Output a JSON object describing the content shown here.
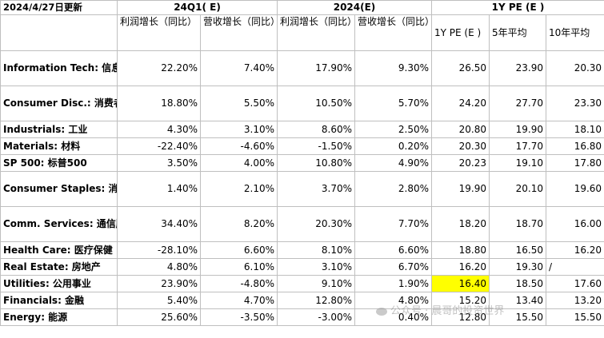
{
  "header": {
    "date": "2024/4/27日更新",
    "group_q1": "24Q1( E)",
    "group_2024": "2024(E)",
    "group_pe": "1Y PE (E )"
  },
  "subheader": {
    "profit_growth": "利润增长（同比）",
    "revenue_growth": "营收增长（同比）",
    "profit_growth_2024": "利润增长（同比）",
    "revenue_growth_2024": "营收增长（同比）",
    "pe_1y": "1Y PE (E )",
    "avg_5y": "5年平均",
    "avg_10y": "10年平均"
  },
  "rows": [
    {
      "label": "Information Tech: 信息技术",
      "q1_profit": "22.20%",
      "q1_rev": "7.40%",
      "y_profit": "17.90%",
      "y_rev": "9.30%",
      "pe": "26.50",
      "avg5": "23.90",
      "avg10": "20.30"
    },
    {
      "label": "Consumer Disc.: 消费者可选消费",
      "q1_profit": "18.80%",
      "q1_rev": "5.50%",
      "y_profit": "10.50%",
      "y_rev": "5.70%",
      "pe": "24.20",
      "avg5": "27.70",
      "avg10": "23.30"
    },
    {
      "label": "Industrials: 工业",
      "q1_profit": "4.30%",
      "q1_rev": "3.10%",
      "y_profit": "8.60%",
      "y_rev": "2.50%",
      "pe": "20.80",
      "avg5": "19.90",
      "avg10": "18.10"
    },
    {
      "label": "Materials: 材料",
      "q1_profit": "-22.40%",
      "q1_rev": "-4.60%",
      "y_profit": "-1.50%",
      "y_rev": "0.20%",
      "pe": "20.30",
      "avg5": "17.70",
      "avg10": "16.80"
    },
    {
      "label": "SP 500: 标普500",
      "q1_profit": "3.50%",
      "q1_rev": "4.00%",
      "y_profit": "10.80%",
      "y_rev": "4.90%",
      "pe": "20.23",
      "avg5": "19.10",
      "avg10": "17.80"
    },
    {
      "label": "Consumer Staples: 消费者必需消费品",
      "q1_profit": "1.40%",
      "q1_rev": "2.10%",
      "y_profit": "3.70%",
      "y_rev": "2.80%",
      "pe": "19.90",
      "avg5": "20.10",
      "avg10": "19.60"
    },
    {
      "label": "Comm. Services: 通信服务",
      "q1_profit": "34.40%",
      "q1_rev": "8.20%",
      "y_profit": "20.30%",
      "y_rev": "7.70%",
      "pe": "18.20",
      "avg5": "18.70",
      "avg10": "16.00"
    },
    {
      "label": "Health Care: 医疗保健",
      "q1_profit": "-28.10%",
      "q1_rev": "6.60%",
      "y_profit": "8.10%",
      "y_rev": "6.60%",
      "pe": "18.80",
      "avg5": "16.50",
      "avg10": "16.20"
    },
    {
      "label": "Real Estate: 房地产",
      "q1_profit": "4.80%",
      "q1_rev": "6.10%",
      "y_profit": "3.10%",
      "y_rev": "6.70%",
      "pe": "16.20",
      "avg5": "19.30",
      "avg10": "/"
    },
    {
      "label": "Utilities: 公用事业",
      "q1_profit": "23.90%",
      "q1_rev": "-4.80%",
      "y_profit": "9.10%",
      "y_rev": "1.90%",
      "pe": "16.40",
      "avg5": "18.50",
      "avg10": "17.60"
    },
    {
      "label": "Financials: 金融",
      "q1_profit": "5.40%",
      "q1_rev": "4.70%",
      "y_profit": "12.80%",
      "y_rev": "4.80%",
      "pe": "15.20",
      "avg5": "13.40",
      "avg10": "13.20"
    },
    {
      "label": "Energy: 能源",
      "q1_profit": "25.60%",
      "q1_rev": "-3.50%",
      "y_profit": "-3.00%",
      "y_rev": "0.40%",
      "pe": "12.80",
      "avg5": "15.50",
      "avg10": "15.50"
    }
  ],
  "highlight_color": "#ffff00",
  "watermark": "公众号 · 晨哥的投资世界"
}
